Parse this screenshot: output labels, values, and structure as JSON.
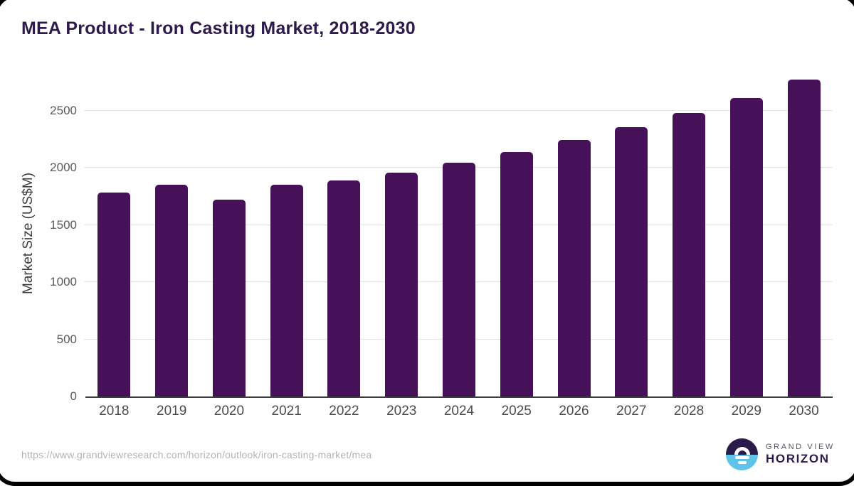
{
  "title": "MEA Product - Iron Casting Market, 2018-2030",
  "source_url": "https://www.grandviewresearch.com/horizon/outlook/iron-casting-market/mea",
  "logo": {
    "line1": "GRAND VIEW",
    "line2": "HORIZON"
  },
  "chart_data": {
    "type": "bar",
    "title": "MEA Product - Iron Casting Market, 2018-2030",
    "categories": [
      "2018",
      "2019",
      "2020",
      "2021",
      "2022",
      "2023",
      "2024",
      "2025",
      "2026",
      "2027",
      "2028",
      "2029",
      "2030"
    ],
    "values": [
      1785,
      1850,
      1720,
      1850,
      1890,
      1960,
      2045,
      2140,
      2245,
      2355,
      2480,
      2610,
      2775
    ],
    "xlabel": "",
    "ylabel": "Market Size (US$M)",
    "yticks": [
      0,
      500,
      1000,
      1500,
      2000,
      2500
    ],
    "ylim": [
      0,
      2860
    ],
    "grid": "horizontal",
    "legend": "none",
    "bar_color": "#47115a"
  },
  "colors": {
    "bar": "#47115a",
    "title_text": "#2e1a4d",
    "axis_text": "#4c4c4c",
    "tick_text": "#595959",
    "gridline": "#e4e4e4",
    "axis_line": "#3c3c3c",
    "source_text": "#b4b4b4",
    "logo_dark": "#2c1a4a",
    "logo_blue": "#5fc3ea"
  }
}
